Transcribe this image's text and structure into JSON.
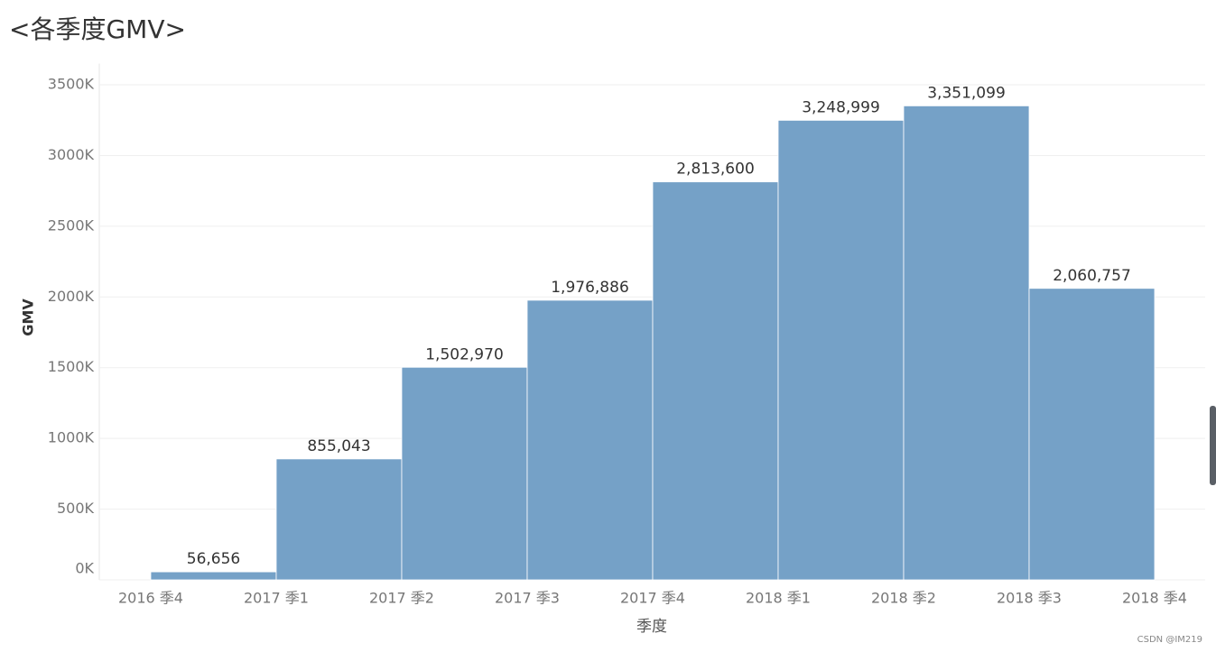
{
  "chart_data": {
    "type": "bar",
    "title": "<各季度GMV>",
    "x_label": "季度",
    "y_label": "GMV",
    "categories": [
      "2016 季4",
      "2017 季1",
      "2017 季2",
      "2017 季3",
      "2017 季4",
      "2018 季1",
      "2018 季2",
      "2018 季3",
      "2018 季4"
    ],
    "values": [
      56656,
      855043,
      1502970,
      1976886,
      2813600,
      3248999,
      3351099,
      2060757,
      null
    ],
    "value_labels": [
      "56,656",
      "855,043",
      "1,502,970",
      "1,976,886",
      "2,813,600",
      "3,248,999",
      "3,351,099",
      "2,060,757",
      null
    ],
    "color": "#75a1c7",
    "ylim": [
      0,
      3650000
    ],
    "yticks": [
      {
        "value": 0,
        "label": "0K"
      },
      {
        "value": 500000,
        "label": "500K"
      },
      {
        "value": 1000000,
        "label": "1000K"
      },
      {
        "value": 1500000,
        "label": "1500K"
      },
      {
        "value": 2000000,
        "label": "2000K"
      },
      {
        "value": 2500000,
        "label": "2500K"
      },
      {
        "value": 3000000,
        "label": "3000K"
      },
      {
        "value": 3500000,
        "label": "3500K"
      }
    ],
    "grid": true,
    "watermark": "CSDN @IM219"
  }
}
